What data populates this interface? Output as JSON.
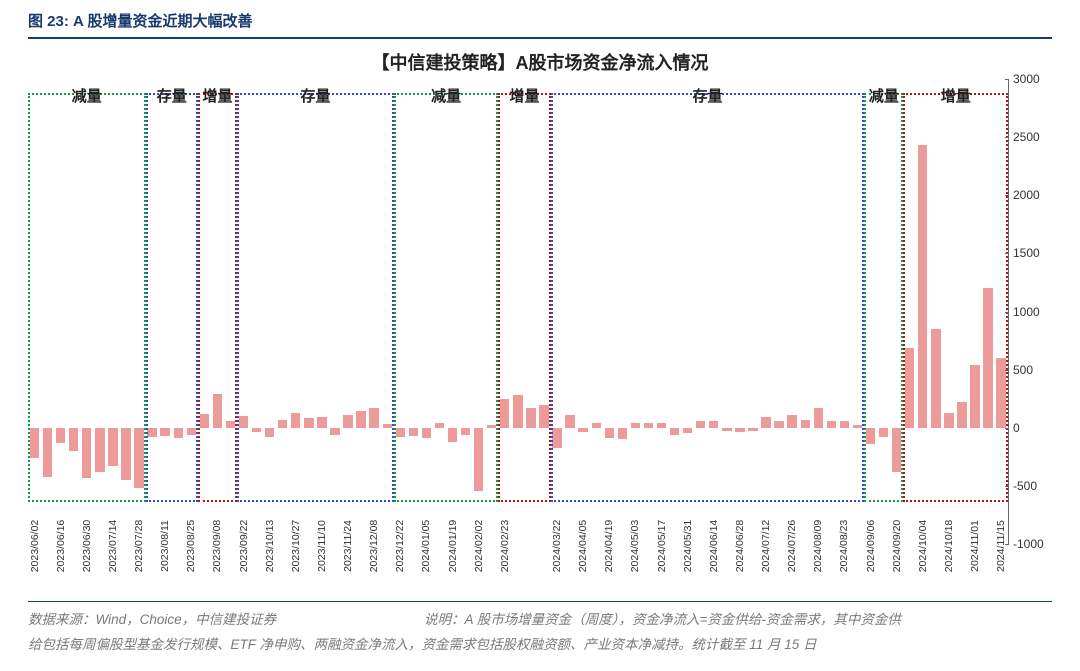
{
  "figure_label": "图 23: A 股增量资金近期大幅改善",
  "chart": {
    "type": "bar",
    "title": "【中信建投策略】A股市场资金净流入情况",
    "ylim": [
      -1000,
      3000
    ],
    "ytick_step": 500,
    "yticks": [
      -1000,
      -500,
      0,
      500,
      1000,
      1500,
      2000,
      2500,
      3000
    ],
    "bar_color": "#ed9a9a",
    "axis_color": "#666666",
    "bar_width": 0.72,
    "background_color": "#ffffff",
    "title_fontsize": 18,
    "tick_fontsize": 12,
    "xlabel_fontsize": 10.5,
    "bars": [
      {
        "date": "2023/06/02",
        "value": -260,
        "show": true
      },
      {
        "date": "2023/06/09",
        "value": -420,
        "show": false
      },
      {
        "date": "2023/06/16",
        "value": -130,
        "show": true
      },
      {
        "date": "2023/06/23",
        "value": -200,
        "show": false
      },
      {
        "date": "2023/06/30",
        "value": -430,
        "show": true
      },
      {
        "date": "2023/07/07",
        "value": -380,
        "show": false
      },
      {
        "date": "2023/07/14",
        "value": -330,
        "show": true
      },
      {
        "date": "2023/07/21",
        "value": -450,
        "show": false
      },
      {
        "date": "2023/07/28",
        "value": -520,
        "show": true
      },
      {
        "date": "2023/08/04",
        "value": -80,
        "show": false
      },
      {
        "date": "2023/08/11",
        "value": -70,
        "show": true
      },
      {
        "date": "2023/08/18",
        "value": -90,
        "show": false
      },
      {
        "date": "2023/08/25",
        "value": -60,
        "show": true
      },
      {
        "date": "2023/09/01",
        "value": 120,
        "show": false
      },
      {
        "date": "2023/09/08",
        "value": 290,
        "show": true
      },
      {
        "date": "2023/09/15",
        "value": 60,
        "show": false
      },
      {
        "date": "2023/09/22",
        "value": 100,
        "show": true
      },
      {
        "date": "2023/09/29",
        "value": -40,
        "show": false
      },
      {
        "date": "2023/10/13",
        "value": -80,
        "show": true
      },
      {
        "date": "2023/10/20",
        "value": 70,
        "show": false
      },
      {
        "date": "2023/10/27",
        "value": 130,
        "show": true
      },
      {
        "date": "2023/11/03",
        "value": 80,
        "show": false
      },
      {
        "date": "2023/11/10",
        "value": 90,
        "show": true
      },
      {
        "date": "2023/11/17",
        "value": -60,
        "show": false
      },
      {
        "date": "2023/11/24",
        "value": 110,
        "show": true
      },
      {
        "date": "2023/12/01",
        "value": 140,
        "show": false
      },
      {
        "date": "2023/12/08",
        "value": 170,
        "show": true
      },
      {
        "date": "2023/12/15",
        "value": 30,
        "show": false
      },
      {
        "date": "2023/12/22",
        "value": -80,
        "show": true
      },
      {
        "date": "2023/12/29",
        "value": -70,
        "show": false
      },
      {
        "date": "2024/01/05",
        "value": -90,
        "show": true
      },
      {
        "date": "2024/01/12",
        "value": 40,
        "show": false
      },
      {
        "date": "2024/01/19",
        "value": -120,
        "show": true
      },
      {
        "date": "2024/01/26",
        "value": -60,
        "show": false
      },
      {
        "date": "2024/02/02",
        "value": -540,
        "show": true
      },
      {
        "date": "2024/02/09",
        "value": 25,
        "show": false
      },
      {
        "date": "2024/02/23",
        "value": 250,
        "show": true
      },
      {
        "date": "2024/03/01",
        "value": 280,
        "show": false
      },
      {
        "date": "2024/03/08",
        "value": 170,
        "show": false
      },
      {
        "date": "2024/03/15",
        "value": 200,
        "show": false
      },
      {
        "date": "2024/03/22",
        "value": -170,
        "show": true
      },
      {
        "date": "2024/03/29",
        "value": 110,
        "show": false
      },
      {
        "date": "2024/04/05",
        "value": -40,
        "show": true
      },
      {
        "date": "2024/04/12",
        "value": 40,
        "show": false
      },
      {
        "date": "2024/04/19",
        "value": -90,
        "show": true
      },
      {
        "date": "2024/04/26",
        "value": -100,
        "show": false
      },
      {
        "date": "2024/05/03",
        "value": 40,
        "show": true
      },
      {
        "date": "2024/05/10",
        "value": 40,
        "show": false
      },
      {
        "date": "2024/05/17",
        "value": 45,
        "show": true
      },
      {
        "date": "2024/05/24",
        "value": -60,
        "show": false
      },
      {
        "date": "2024/05/31",
        "value": -45,
        "show": true
      },
      {
        "date": "2024/06/07",
        "value": 55,
        "show": false
      },
      {
        "date": "2024/06/14",
        "value": 60,
        "show": true
      },
      {
        "date": "2024/06/21",
        "value": -30,
        "show": false
      },
      {
        "date": "2024/06/28",
        "value": -35,
        "show": true
      },
      {
        "date": "2024/07/05",
        "value": -30,
        "show": false
      },
      {
        "date": "2024/07/12",
        "value": 90,
        "show": true
      },
      {
        "date": "2024/07/19",
        "value": 60,
        "show": false
      },
      {
        "date": "2024/07/26",
        "value": 110,
        "show": true
      },
      {
        "date": "2024/08/02",
        "value": 70,
        "show": false
      },
      {
        "date": "2024/08/09",
        "value": 170,
        "show": true
      },
      {
        "date": "2024/08/16",
        "value": 60,
        "show": false
      },
      {
        "date": "2024/08/23",
        "value": 55,
        "show": true
      },
      {
        "date": "2024/08/30",
        "value": 20,
        "show": false
      },
      {
        "date": "2024/09/06",
        "value": -140,
        "show": true
      },
      {
        "date": "2024/09/13",
        "value": -80,
        "show": false
      },
      {
        "date": "2024/09/20",
        "value": -380,
        "show": true
      },
      {
        "date": "2024/09/27",
        "value": 690,
        "show": false
      },
      {
        "date": "2024/10/04",
        "value": 2430,
        "show": true
      },
      {
        "date": "2024/10/11",
        "value": 850,
        "show": false
      },
      {
        "date": "2024/10/18",
        "value": 130,
        "show": true
      },
      {
        "date": "2024/10/25",
        "value": 220,
        "show": false
      },
      {
        "date": "2024/11/01",
        "value": 540,
        "show": true
      },
      {
        "date": "2024/11/08",
        "value": 1200,
        "show": false
      },
      {
        "date": "2024/11/15",
        "value": 600,
        "show": true
      }
    ],
    "regions": [
      {
        "label": "减量",
        "start": 0,
        "end": 9,
        "color": "#139a46"
      },
      {
        "label": "存量",
        "start": 9,
        "end": 13,
        "color": "#2b4fd1"
      },
      {
        "label": "增量",
        "start": 13,
        "end": 16,
        "color": "#b01616"
      },
      {
        "label": "存量",
        "start": 16,
        "end": 28,
        "color": "#2b4fd1"
      },
      {
        "label": "减量",
        "start": 28,
        "end": 36,
        "color": "#139a46"
      },
      {
        "label": "增量",
        "start": 36,
        "end": 40,
        "color": "#b01616"
      },
      {
        "label": "存量",
        "start": 40,
        "end": 64,
        "color": "#2b4fd1"
      },
      {
        "label": "减量",
        "start": 64,
        "end": 67,
        "color": "#139a46"
      },
      {
        "label": "增量",
        "start": 67,
        "end": 75,
        "color": "#b01616"
      }
    ]
  },
  "footnote": {
    "source_label": "数据来源：Wind，Choice，中信建投证券",
    "desc_prefix": "说明：",
    "desc_line1": "A 股市场增量资金（周度），资金净流入=资金供给-资金需求，其中资金供",
    "desc_line2": "给包括每周偏股型基金发行规模、ETF 净申购、两融资金净流入，资金需求包括股权融资额、产业资本净减持。统计截至 11 月 15 日"
  }
}
